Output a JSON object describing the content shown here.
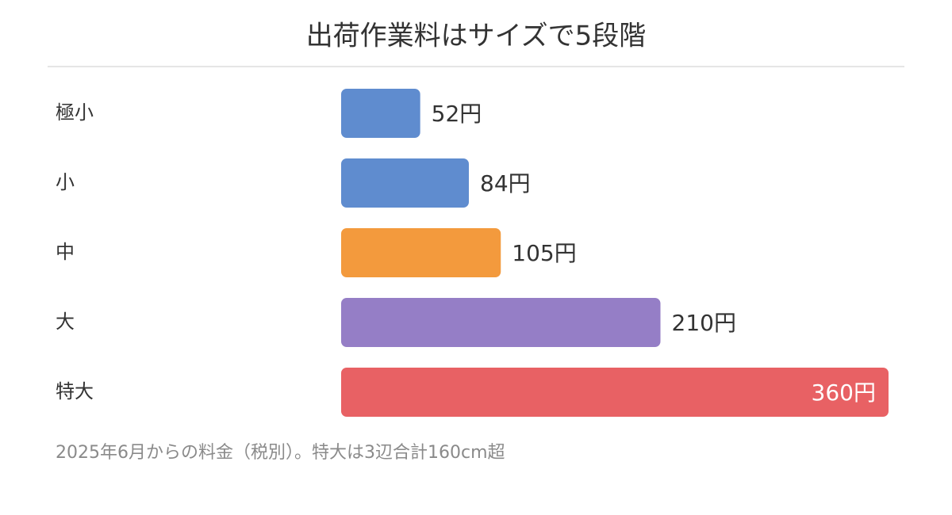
{
  "chart_data": {
    "type": "bar",
    "orientation": "horizontal",
    "title": "出荷作業料はサイズで5段階",
    "categories": [
      "極小",
      "小",
      "中",
      "大",
      "特大"
    ],
    "values": [
      52,
      84,
      105,
      210,
      360
    ],
    "value_labels": [
      "52円",
      "84円",
      "105円",
      "210円",
      "360円"
    ],
    "colors": [
      "#5f8ccf",
      "#5f8ccf",
      "#f39a3d",
      "#957ec6",
      "#e86164"
    ],
    "note": "2025年6月からの料金（税別）。特大は3辺合計160cm超"
  }
}
